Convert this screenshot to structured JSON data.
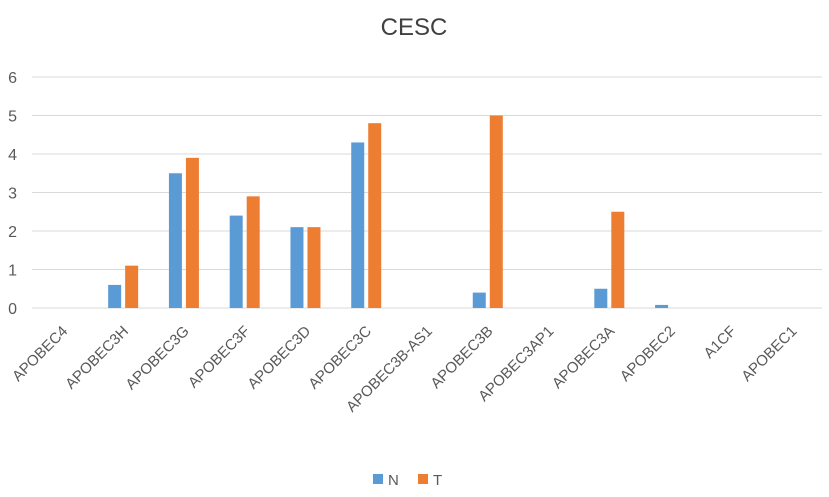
{
  "chart_data": {
    "type": "bar",
    "title": "CESC",
    "xlabel": "",
    "ylabel": "",
    "ylim": [
      0,
      6
    ],
    "yticks": [
      0,
      1,
      2,
      3,
      4,
      5,
      6
    ],
    "grid": true,
    "legend_placement": "bottom",
    "categories": [
      "APOBEC4",
      "APOBEC3H",
      "APOBEC3G",
      "APOBEC3F",
      "APOBEC3D",
      "APOBEC3C",
      "APOBEC3B-AS1",
      "APOBEC3B",
      "APOBEC3AP1",
      "APOBEC3A",
      "APOBEC2",
      "A1CF",
      "APOBEC1"
    ],
    "series": [
      {
        "name": "N",
        "color": "#5b9bd5",
        "values": [
          0,
          0.6,
          3.5,
          2.4,
          2.1,
          4.3,
          0,
          0.4,
          0,
          0.5,
          0.08,
          0,
          0
        ]
      },
      {
        "name": "T",
        "color": "#ed7d31",
        "values": [
          0,
          1.1,
          3.9,
          2.9,
          2.1,
          4.8,
          0,
          5.0,
          0,
          2.5,
          0,
          0,
          0
        ]
      }
    ]
  }
}
